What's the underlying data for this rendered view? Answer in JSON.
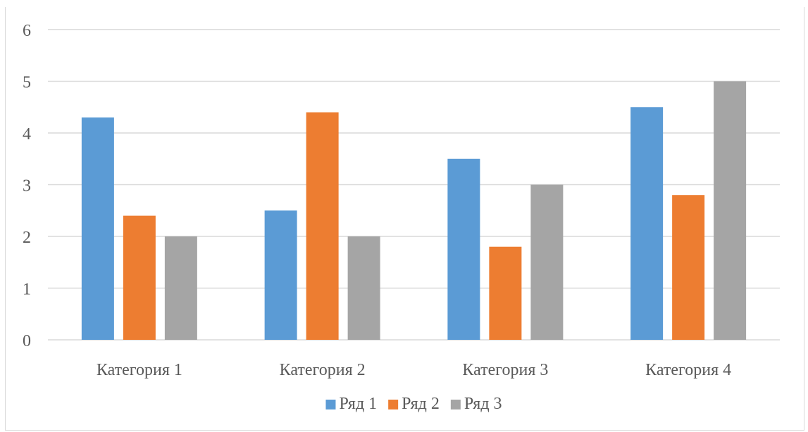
{
  "chart_data": {
    "type": "bar",
    "categories": [
      "Категория 1",
      "Категория 2",
      "Категория 3",
      "Категория 4"
    ],
    "series": [
      {
        "name": "Ряд 1",
        "color": "#5b9bd5",
        "values": [
          4.3,
          2.5,
          3.5,
          4.5
        ]
      },
      {
        "name": "Ряд 2",
        "color": "#ed7d31",
        "values": [
          2.4,
          4.4,
          1.8,
          2.8
        ]
      },
      {
        "name": "Ряд 3",
        "color": "#a5a5a5",
        "values": [
          2,
          2,
          3,
          5
        ]
      }
    ],
    "ylim": [
      0,
      6
    ],
    "yticks": [
      "0",
      "1",
      "2",
      "3",
      "4",
      "5",
      "6"
    ],
    "grid": true,
    "legend_position": "bottom"
  }
}
